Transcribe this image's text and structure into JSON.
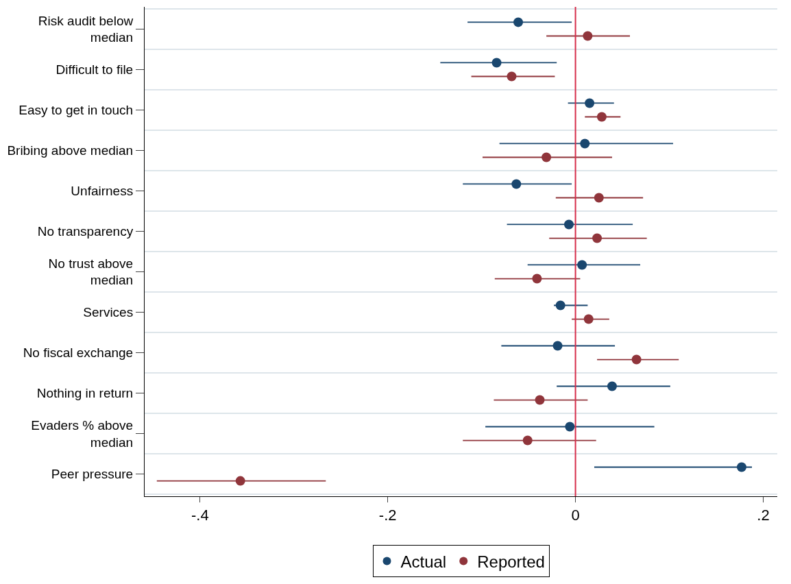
{
  "chart_data": {
    "type": "scatter",
    "orientation": "horizontal",
    "categories": [
      "Risk audit below\nmedian",
      "Difficult to file",
      "Easy to get in touch",
      "Bribing above median",
      "Unfairness",
      "No transparency",
      "No trust above\nmedian",
      "Services",
      "No fiscal exchange",
      "Nothing in return",
      "Evaders % above\nmedian",
      "Peer pressure"
    ],
    "series": [
      {
        "name": "Actual",
        "color": "#1a476f",
        "values": [
          -0.061,
          -0.084,
          0.015,
          0.01,
          -0.063,
          -0.007,
          0.007,
          -0.016,
          -0.019,
          0.039,
          -0.006,
          0.177
        ],
        "errors": [
          [
            -0.115,
            -0.004
          ],
          [
            -0.144,
            -0.02
          ],
          [
            -0.008,
            0.041
          ],
          [
            -0.081,
            0.104
          ],
          [
            -0.12,
            -0.004
          ],
          [
            -0.073,
            0.061
          ],
          [
            -0.051,
            0.069
          ],
          [
            -0.023,
            0.013
          ],
          [
            -0.079,
            0.042
          ],
          [
            -0.02,
            0.101
          ],
          [
            -0.096,
            0.084
          ],
          [
            0.02,
            0.188
          ]
        ]
      },
      {
        "name": "Reported",
        "color": "#90353b",
        "values": [
          0.013,
          -0.068,
          0.028,
          -0.031,
          0.025,
          0.023,
          -0.041,
          0.014,
          0.065,
          -0.038,
          -0.051,
          -0.357
        ],
        "errors": [
          [
            -0.031,
            0.058
          ],
          [
            -0.111,
            -0.022
          ],
          [
            0.01,
            0.048
          ],
          [
            -0.099,
            0.039
          ],
          [
            -0.021,
            0.072
          ],
          [
            -0.028,
            0.076
          ],
          [
            -0.086,
            0.005
          ],
          [
            -0.004,
            0.036
          ],
          [
            0.023,
            0.11
          ],
          [
            -0.087,
            0.013
          ],
          [
            -0.12,
            0.022
          ],
          [
            -0.446,
            -0.266
          ]
        ]
      }
    ],
    "xlim": [
      -0.459,
      0.215
    ],
    "xticks": [
      {
        "value": -0.4,
        "label": "-.4"
      },
      {
        "value": -0.2,
        "label": "-.2"
      },
      {
        "value": 0,
        "label": "0"
      },
      {
        "value": 0.2,
        "label": ".2"
      }
    ],
    "ref_lines": [
      {
        "axis": "x",
        "value": 0,
        "color": "#d62d4a"
      }
    ],
    "grid": "y",
    "legend": "bottom",
    "marker": "circle"
  }
}
